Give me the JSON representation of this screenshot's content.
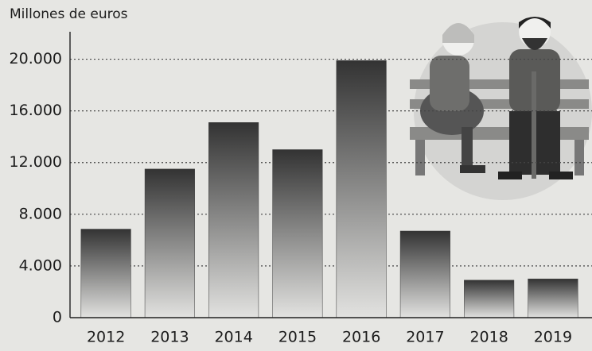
{
  "chart_data": {
    "type": "bar",
    "title": "Millones de euros",
    "categories": [
      "2012",
      "2013",
      "2014",
      "2015",
      "2016",
      "2017",
      "2018",
      "2019"
    ],
    "values": [
      6850,
      11500,
      15100,
      13000,
      19900,
      6700,
      2900,
      3000
    ],
    "color": "#3a3a3a",
    "ylim": [
      0,
      22000
    ],
    "yticks": [
      0,
      {
        "value": 4000,
        "label": "4.000"
      },
      {
        "value": 8000,
        "label": "8.000"
      },
      {
        "value": 12000,
        "label": "12.000"
      },
      {
        "value": 16000,
        "label": "16.000"
      },
      {
        "value": 20000,
        "label": "20.000"
      }
    ],
    "grid": true
  }
}
